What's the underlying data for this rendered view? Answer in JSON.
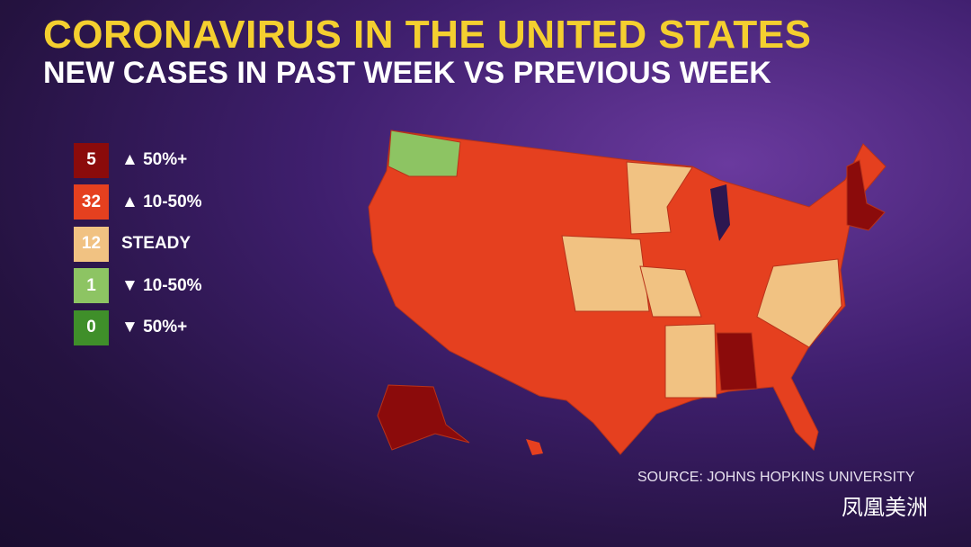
{
  "header": {
    "title": "CORONAVIRUS IN THE UNITED STATES",
    "subtitle": "NEW CASES IN PAST WEEK VS PREVIOUS WEEK"
  },
  "legend": [
    {
      "count": 5,
      "label": "▲ 50%+",
      "color": "#8b0b0b"
    },
    {
      "count": 32,
      "label": "▲ 10-50%",
      "color": "#e5401f"
    },
    {
      "count": 12,
      "label": "STEADY",
      "color": "#f1c282"
    },
    {
      "count": 1,
      "label": "▼ 10-50%",
      "color": "#8dc463"
    },
    {
      "count": 0,
      "label": "▼ 50%+",
      "color": "#3f8f2a"
    }
  ],
  "source": "SOURCE: JOHNS HOPKINS UNIVERSITY",
  "watermark": "凤凰美洲"
}
